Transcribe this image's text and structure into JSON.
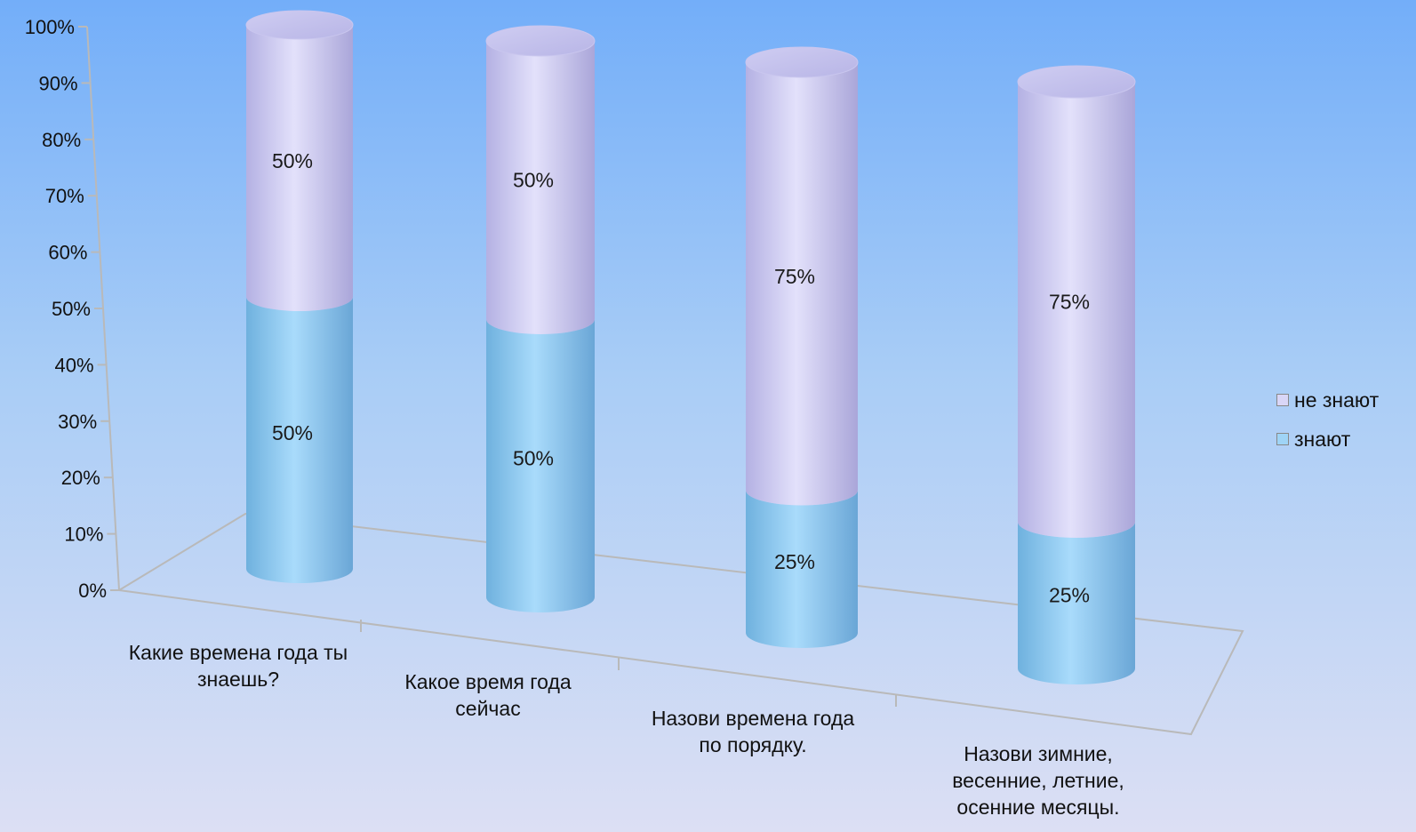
{
  "chart_data": {
    "type": "bar",
    "stacked": "percent",
    "style": "3d-cylinder",
    "categories": [
      "Какие времена года ты знаешь?",
      "Какое время года сейчас",
      "Назови времена года по порядку.",
      "Назови зимние, весенние, летние, осенние месяцы."
    ],
    "category_lines": [
      [
        "Какие времена года ты",
        "знаешь?"
      ],
      [
        "Какое время года",
        "сейчас"
      ],
      [
        "Назови времена года",
        "по порядку."
      ],
      [
        "Назови зимние,",
        "весенние, летние,",
        "осенние месяцы."
      ]
    ],
    "series": [
      {
        "name": "знают",
        "values": [
          50,
          50,
          25,
          25
        ],
        "labels": [
          "50%",
          "50%",
          "25%",
          "25%"
        ],
        "color": "#9fd4f6"
      },
      {
        "name": "не знают",
        "values": [
          50,
          50,
          75,
          75
        ],
        "labels": [
          "50%",
          "50%",
          "75%",
          "75%"
        ],
        "color": "#d9d6f7"
      }
    ],
    "yticks": [
      "0%",
      "10%",
      "20%",
      "30%",
      "40%",
      "50%",
      "60%",
      "70%",
      "80%",
      "90%",
      "100%"
    ],
    "ylim": [
      0,
      100
    ],
    "legend_position": "right"
  }
}
